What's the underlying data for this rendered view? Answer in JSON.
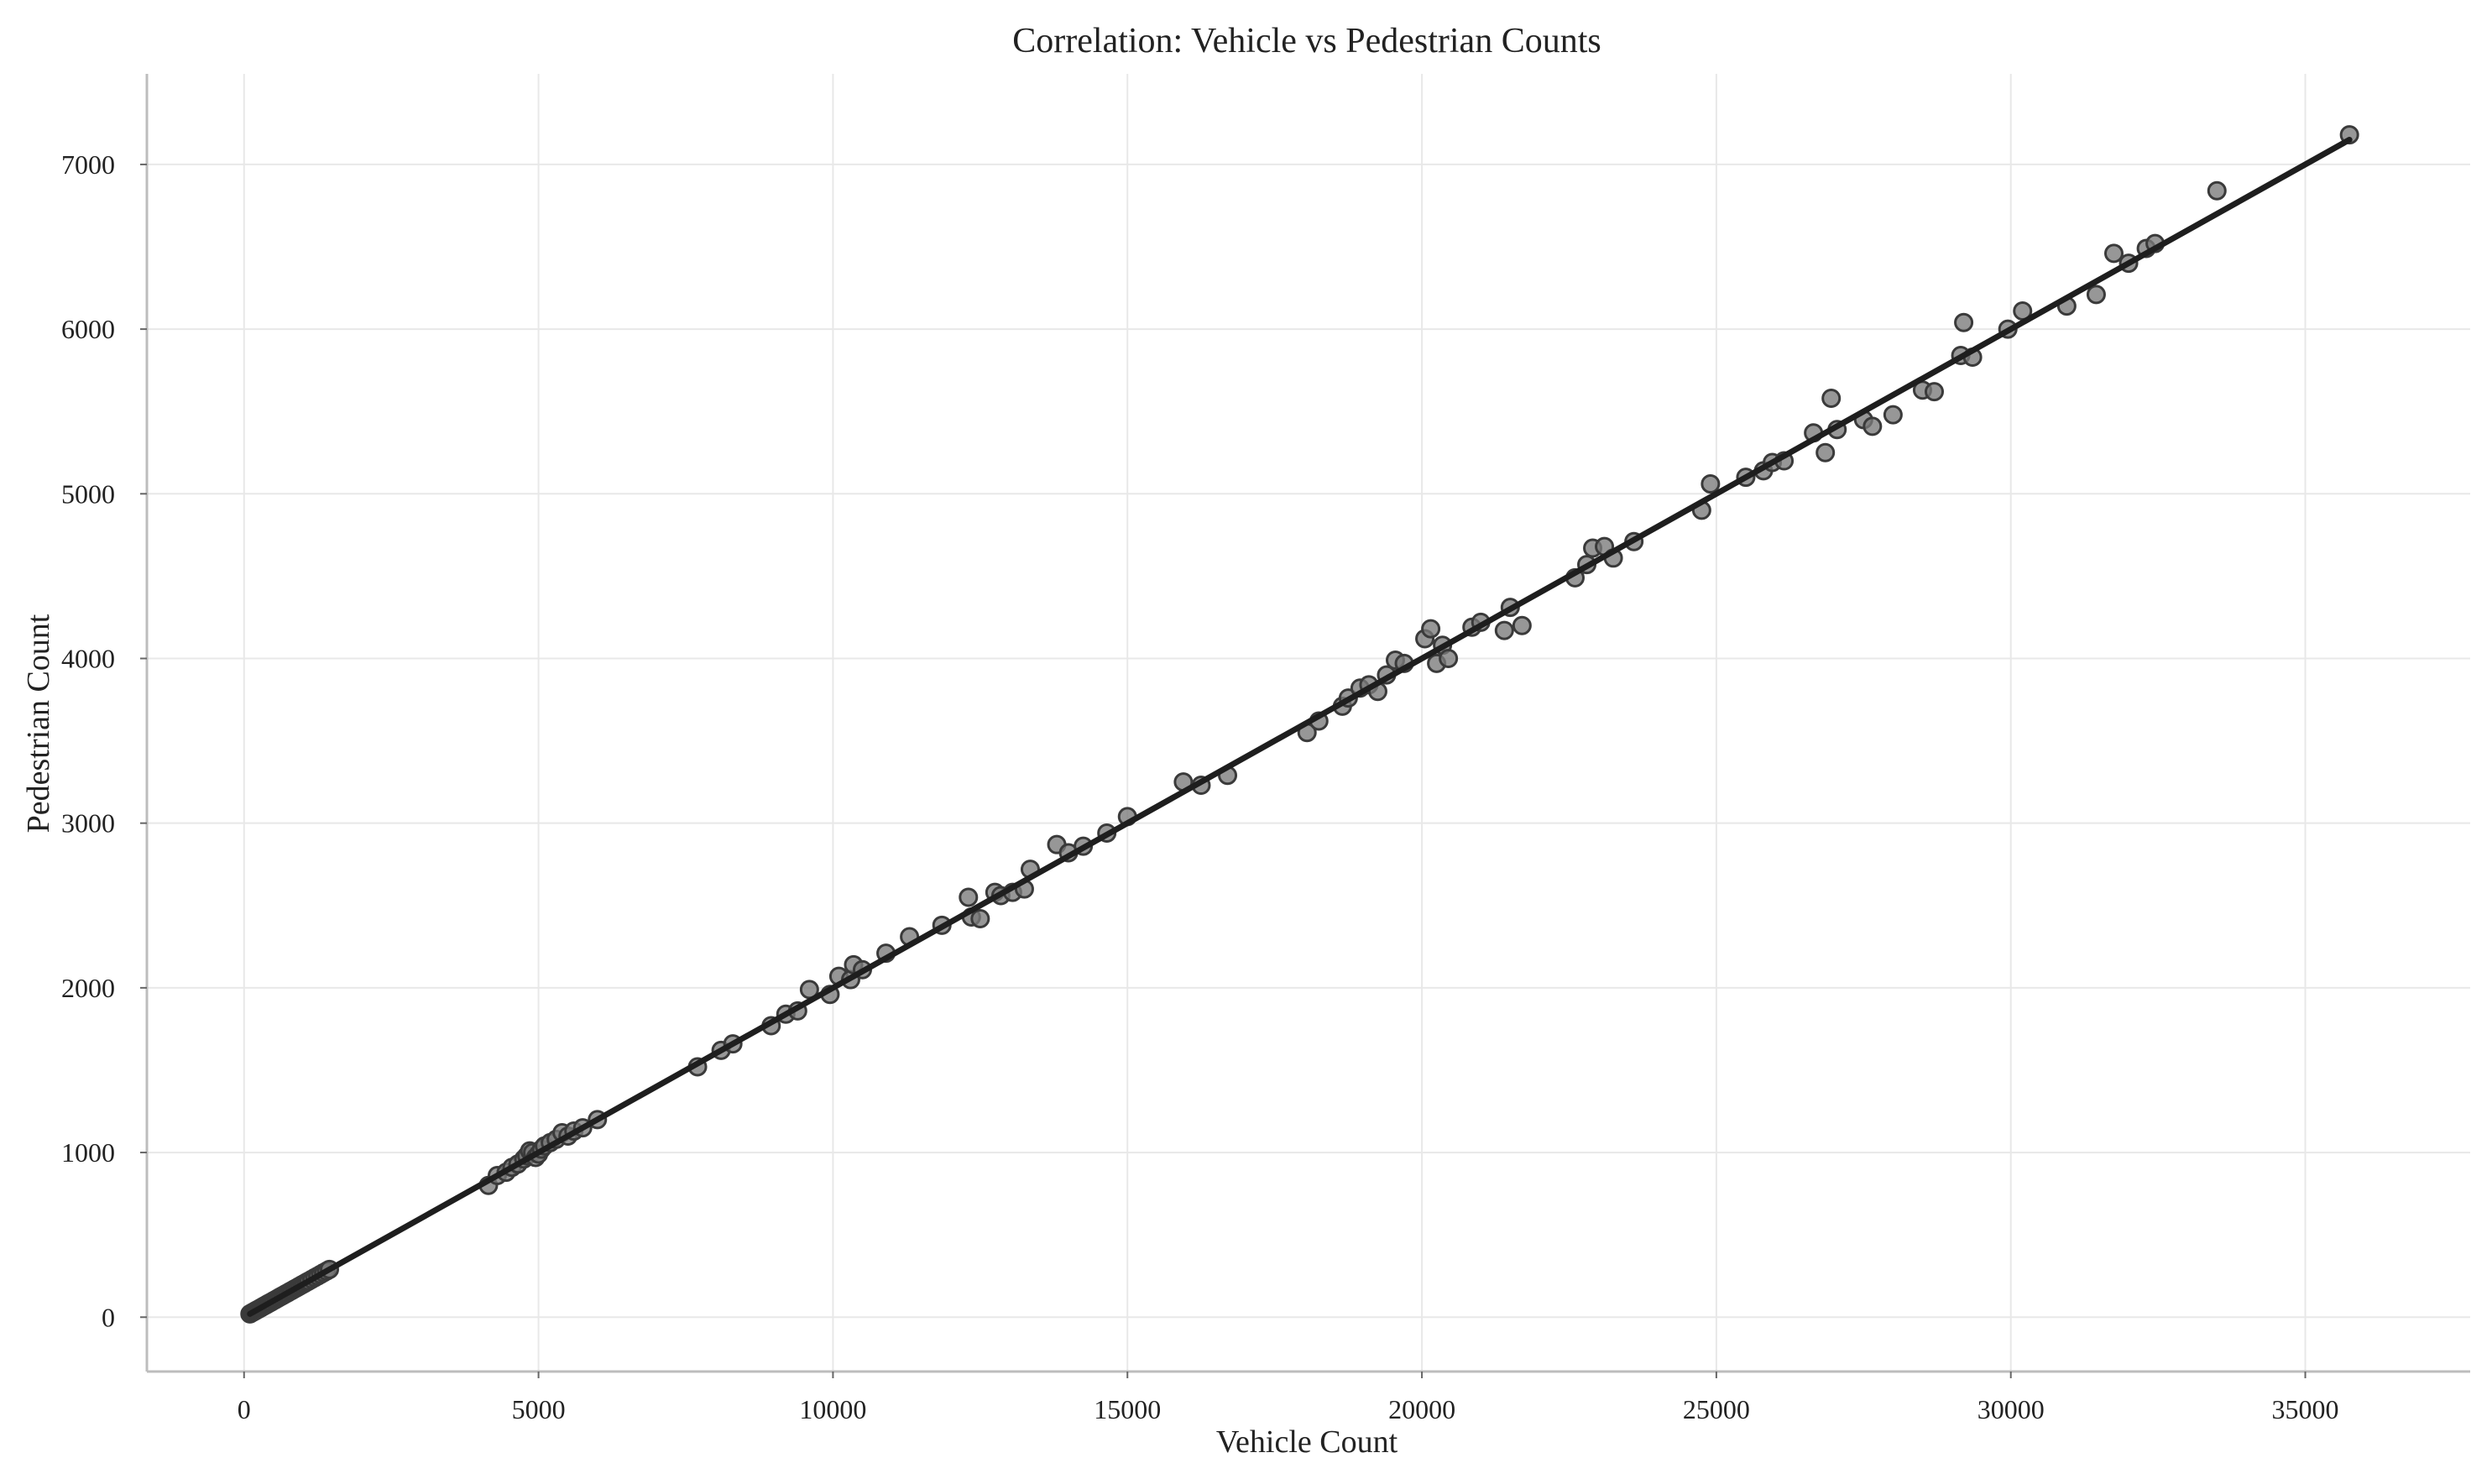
{
  "chart_data": {
    "type": "scatter",
    "title": "Correlation: Vehicle vs Pedestrian Counts",
    "xlabel": "Vehicle Count",
    "ylabel": "Pedestrian Count",
    "xlim": [
      -1650,
      37800
    ],
    "ylim": [
      -330,
      7550
    ],
    "x_ticks": [
      0,
      5000,
      10000,
      15000,
      20000,
      25000,
      30000,
      35000
    ],
    "y_ticks": [
      0,
      1000,
      2000,
      3000,
      4000,
      5000,
      6000,
      7000
    ],
    "x_tick_labels": [
      "0",
      "5000",
      "10000",
      "15000",
      "20000",
      "25000",
      "30000",
      "35000"
    ],
    "y_tick_labels": [
      "0",
      "1000",
      "2000",
      "3000",
      "4000",
      "5000",
      "6000",
      "7000"
    ],
    "grid": true,
    "colors": {
      "points": "#7a7a7a",
      "point_edge": "#3a3a3a",
      "fit_line": "#1e1e1e",
      "grid": "#e8e8e8"
    },
    "fit_line": {
      "x": [
        100,
        35750
      ],
      "y": [
        20,
        7150
      ]
    },
    "series": [
      {
        "x": [
          100,
          130,
          160,
          190,
          220,
          250,
          280,
          310,
          340,
          370,
          400,
          430,
          460,
          500,
          540,
          580,
          620,
          660,
          700,
          740,
          780,
          820,
          860,
          900,
          940,
          980,
          1020,
          1060,
          1100,
          1150,
          1200,
          1250,
          1300,
          1350,
          1400,
          1450,
          4150,
          4300,
          4450,
          4550,
          4650,
          4750,
          4800,
          4850,
          4900,
          4950,
          5000,
          5050,
          5100,
          5200,
          5300,
          5400,
          5500,
          5600,
          5750,
          6000,
          7700,
          8100,
          8300,
          8950,
          9200,
          9400,
          9600,
          9950,
          10100,
          10300,
          10350,
          10500,
          10900,
          11300,
          11850,
          12300,
          12350,
          12500,
          12750,
          12850,
          13050,
          13250,
          13350,
          13800,
          14000,
          14250,
          14650,
          15000,
          15950,
          16250,
          16700,
          18050,
          18250,
          18650,
          18750,
          18950,
          19100,
          19250,
          19400,
          19550,
          19700,
          20050,
          20150,
          20250,
          20350,
          20450,
          20850,
          21000,
          21400,
          21500,
          21700,
          22600,
          22800,
          22900,
          23100,
          23250,
          23600,
          24750,
          24900,
          25500,
          25800,
          25950,
          26150,
          26650,
          26850,
          26950,
          27050,
          27500,
          27650,
          28000,
          28500,
          28700,
          29150,
          29200,
          29350,
          29950,
          30200,
          30950,
          31450,
          31750,
          32000,
          32300,
          32450,
          33500,
          35750
        ],
        "y": [
          20,
          26,
          32,
          38,
          44,
          50,
          56,
          62,
          68,
          74,
          80,
          86,
          92,
          100,
          108,
          116,
          124,
          132,
          140,
          148,
          156,
          164,
          172,
          180,
          188,
          196,
          204,
          212,
          220,
          230,
          240,
          250,
          260,
          270,
          280,
          290,
          800,
          860,
          880,
          910,
          930,
          960,
          980,
          1010,
          1000,
          970,
          990,
          1020,
          1040,
          1060,
          1080,
          1120,
          1100,
          1130,
          1150,
          1200,
          1520,
          1620,
          1660,
          1770,
          1840,
          1860,
          1990,
          1960,
          2070,
          2050,
          2140,
          2110,
          2210,
          2310,
          2380,
          2550,
          2430,
          2420,
          2580,
          2560,
          2580,
          2600,
          2720,
          2870,
          2820,
          2860,
          2940,
          3040,
          3250,
          3230,
          3290,
          3550,
          3620,
          3710,
          3760,
          3820,
          3840,
          3800,
          3900,
          3990,
          3970,
          4120,
          4180,
          3970,
          4080,
          4000,
          4190,
          4220,
          4170,
          4310,
          4200,
          4490,
          4570,
          4670,
          4680,
          4610,
          4710,
          4900,
          5060,
          5100,
          5140,
          5190,
          5200,
          5370,
          5250,
          5580,
          5390,
          5450,
          5410,
          5480,
          5630,
          5620,
          5840,
          6040,
          5830,
          6000,
          6110,
          6140,
          6210,
          6460,
          6400,
          6490,
          6520,
          6840,
          7180
        ]
      }
    ]
  }
}
